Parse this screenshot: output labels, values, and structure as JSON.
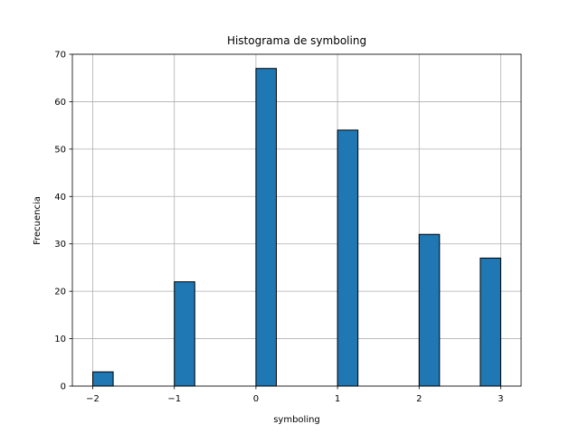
{
  "chart_data": {
    "type": "bar",
    "title": "Histograma de symboling",
    "xlabel": "symboling",
    "ylabel": "Frecuencia",
    "xlim": [
      -2.25,
      3.25
    ],
    "ylim": [
      0,
      70
    ],
    "xticks": [
      -2,
      -1,
      0,
      1,
      2,
      3
    ],
    "xtick_labels": [
      "−2",
      "−1",
      "0",
      "1",
      "2",
      "3"
    ],
    "yticks": [
      0,
      10,
      20,
      30,
      40,
      50,
      60,
      70
    ],
    "grid": true,
    "bar_color": "#1f77b4",
    "edge_color": "#000000",
    "bins": [
      {
        "x0": -2.0,
        "x1": -1.75,
        "value": 3
      },
      {
        "x0": -1.0,
        "x1": -0.75,
        "value": 22
      },
      {
        "x0": 0.0,
        "x1": 0.25,
        "value": 67
      },
      {
        "x0": 1.0,
        "x1": 1.25,
        "value": 54
      },
      {
        "x0": 2.0,
        "x1": 2.25,
        "value": 32
      },
      {
        "x0": 2.75,
        "x1": 3.0,
        "value": 27
      }
    ]
  }
}
